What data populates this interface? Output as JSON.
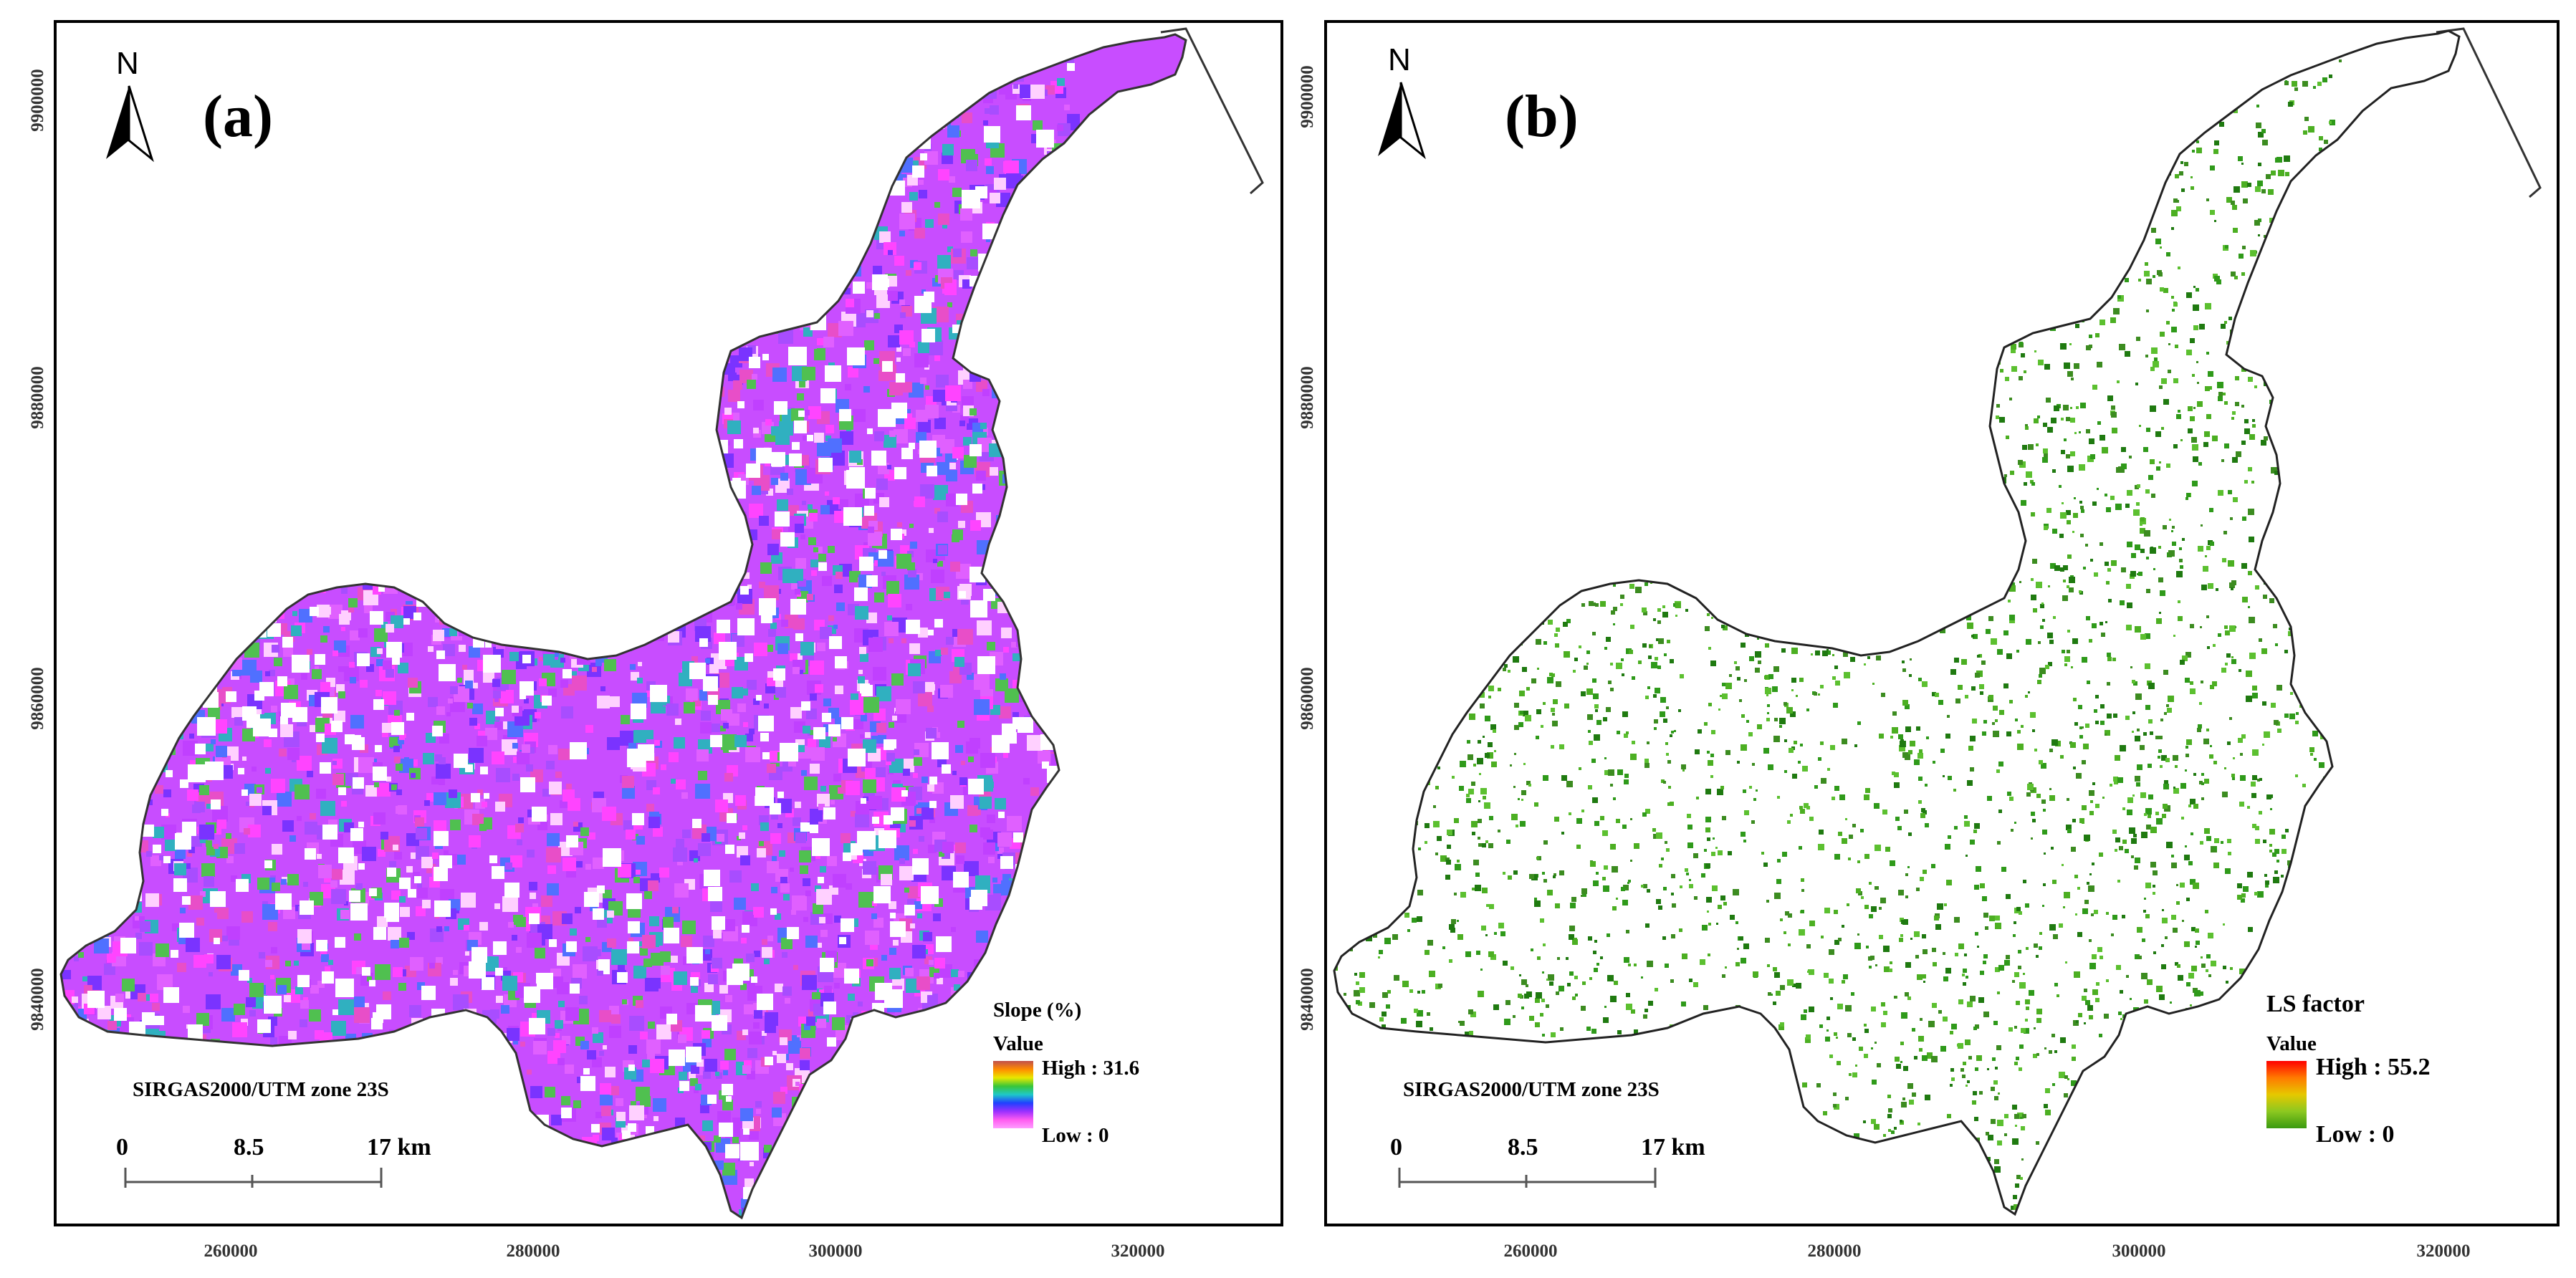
{
  "panels": [
    {
      "id": "a",
      "label": "(a)",
      "north": "N",
      "legend_title": "Slope (%)",
      "legend_value": "Value",
      "legend_high": "High : 31.6",
      "legend_low": "Low : 0",
      "legend_colors": [
        "#c0504d",
        "#ff8c00",
        "#e8e800",
        "#39c639",
        "#1ec8c8",
        "#2040ff",
        "#9b30ff",
        "#ff5cf0",
        "#ff9cff"
      ],
      "crs": "SIRGAS2000/UTM zone 23S",
      "scale_labels": [
        "0",
        "8.5",
        "17 km"
      ],
      "x_ticks": [
        "260000",
        "280000",
        "300000",
        "320000"
      ],
      "y_ticks": [
        "9900000",
        "9880000",
        "9860000",
        "9840000"
      ],
      "fill_colors": [
        "#ff44ff",
        "#a84dff",
        "#7a33ff",
        "#e060ff",
        "#5070ff",
        "#30b0c0",
        "#e84ec8",
        "#c040ff",
        "#50c050",
        "#ffd0ff"
      ]
    },
    {
      "id": "b",
      "label": "(b)",
      "north": "N",
      "legend_title": "LS factor",
      "legend_value": "Value",
      "legend_high": "High : 55.2",
      "legend_low": "Low : 0",
      "legend_colors": [
        "#ff0000",
        "#ff7a00",
        "#e6c800",
        "#8cc820",
        "#3a9a10"
      ],
      "crs": "SIRGAS2000/UTM zone 23S",
      "scale_labels": [
        "0",
        "8.5",
        "17 km"
      ],
      "x_ticks": [
        "260000",
        "280000",
        "300000",
        "320000"
      ],
      "y_ticks": [
        "9900000",
        "9880000",
        "9860000",
        "9840000"
      ],
      "fill_colors": [
        "#2f9a1a",
        "#4caf22",
        "#1f7a10",
        "#5cc030",
        "#3c8c20"
      ]
    }
  ]
}
